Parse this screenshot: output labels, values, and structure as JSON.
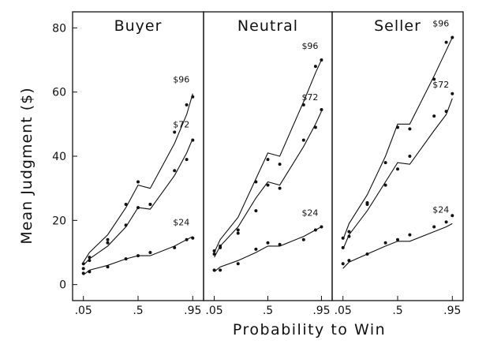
{
  "chart_data": [
    {
      "type": "line",
      "title": "Buyer",
      "xlabel": "Probability to Win",
      "ylabel": "Mean Judgment ($)",
      "xlim": [
        0,
        1
      ],
      "ylim": [
        -5,
        85
      ],
      "x_ticks": [
        ".05",
        ".5",
        ".95"
      ],
      "y_ticks": [
        "0",
        "20",
        "40",
        "60",
        "80"
      ],
      "series": [
        {
          "name": "$96",
          "points": {
            "x": [
              0.05,
              0.1,
              0.25,
              0.4,
              0.5,
              0.6,
              0.8,
              0.9,
              0.95
            ],
            "y": [
              6.5,
              8.5,
              14,
              25,
              32,
              25,
              47.5,
              56,
              58.5
            ]
          },
          "fit": {
            "x": [
              0.05,
              0.1,
              0.25,
              0.4,
              0.5,
              0.6,
              0.8,
              0.9,
              0.95
            ],
            "y": [
              7,
              10,
              15.5,
              24,
              31,
              30,
              44,
              53,
              59.5
            ]
          }
        },
        {
          "name": "$72",
          "points": {
            "x": [
              0.05,
              0.1,
              0.25,
              0.4,
              0.5,
              0.6,
              0.8,
              0.9,
              0.95
            ],
            "y": [
              5,
              7.5,
              13,
              18.5,
              24,
              25,
              35.5,
              39,
              45
            ]
          },
          "fit": {
            "x": [
              0.05,
              0.1,
              0.25,
              0.4,
              0.5,
              0.6,
              0.8,
              0.9,
              0.95
            ],
            "y": [
              6,
              8,
              12,
              18,
              24,
              23.5,
              34,
              41,
              45.5
            ]
          }
        },
        {
          "name": "$24",
          "points": {
            "x": [
              0.05,
              0.1,
              0.25,
              0.4,
              0.5,
              0.6,
              0.8,
              0.9,
              0.95
            ],
            "y": [
              3.5,
              4,
              5.5,
              8,
              9,
              10,
              11.5,
              14,
              14.5
            ]
          },
          "fit": {
            "x": [
              0.05,
              0.1,
              0.25,
              0.4,
              0.5,
              0.6,
              0.8,
              0.9,
              0.95
            ],
            "y": [
              3,
              4.5,
              6,
              8,
              9,
              9,
              12,
              14,
              15
            ]
          }
        }
      ]
    },
    {
      "type": "line",
      "title": "Neutral",
      "xlim": [
        0,
        1
      ],
      "ylim": [
        -5,
        85
      ],
      "x_ticks": [
        ".05",
        ".5",
        ".95"
      ],
      "series": [
        {
          "name": "$96",
          "points": {
            "x": [
              0.05,
              0.1,
              0.25,
              0.4,
              0.5,
              0.6,
              0.8,
              0.9,
              0.95
            ],
            "y": [
              10.5,
              12,
              17,
              32,
              39,
              37.5,
              56,
              68,
              70
            ]
          },
          "fit": {
            "x": [
              0.05,
              0.1,
              0.25,
              0.4,
              0.5,
              0.6,
              0.8,
              0.9,
              0.95
            ],
            "y": [
              10,
              14,
              21,
              33,
              41,
              40,
              57,
              66,
              70
            ]
          }
        },
        {
          "name": "$72",
          "points": {
            "x": [
              0.05,
              0.1,
              0.25,
              0.4,
              0.5,
              0.6,
              0.8,
              0.9,
              0.95
            ],
            "y": [
              9.5,
              11.5,
              16,
              23,
              31,
              30,
              45,
              49,
              54.5
            ]
          },
          "fit": {
            "x": [
              0.05,
              0.1,
              0.25,
              0.4,
              0.5,
              0.6,
              0.8,
              0.9,
              0.95
            ],
            "y": [
              8.5,
              12,
              18,
              27,
              32,
              31,
              43,
              50,
              54
            ]
          }
        },
        {
          "name": "$24",
          "points": {
            "x": [
              0.05,
              0.1,
              0.25,
              0.4,
              0.5,
              0.6,
              0.8,
              0.9,
              0.95
            ],
            "y": [
              4.5,
              4.5,
              6.5,
              11,
              13,
              12.5,
              14,
              17,
              18
            ]
          },
          "fit": {
            "x": [
              0.05,
              0.1,
              0.25,
              0.4,
              0.5,
              0.6,
              0.8,
              0.9,
              0.95
            ],
            "y": [
              4,
              5.5,
              7.5,
              10,
              12,
              12,
              15,
              17,
              18
            ]
          }
        }
      ]
    },
    {
      "type": "line",
      "title": "Seller",
      "xlim": [
        0,
        1
      ],
      "ylim": [
        -5,
        85
      ],
      "x_ticks": [
        ".05",
        ".5",
        ".95"
      ],
      "series": [
        {
          "name": "$96",
          "points": {
            "x": [
              0.05,
              0.1,
              0.25,
              0.4,
              0.5,
              0.6,
              0.8,
              0.9,
              0.95
            ],
            "y": [
              14.5,
              16.5,
              25.5,
              38,
              49,
              48.5,
              64,
              75.5,
              77
            ]
          },
          "fit": {
            "x": [
              0.05,
              0.1,
              0.25,
              0.4,
              0.5,
              0.6,
              0.8,
              0.9,
              0.95
            ],
            "y": [
              14,
              19,
              28,
              40,
              50,
              50,
              65,
              73,
              77
            ]
          }
        },
        {
          "name": "$72",
          "points": {
            "x": [
              0.05,
              0.1,
              0.25,
              0.4,
              0.5,
              0.6,
              0.8,
              0.9,
              0.95
            ],
            "y": [
              11.5,
              15,
              25,
              31,
              36,
              40,
              52.5,
              54,
              59.5
            ]
          },
          "fit": {
            "x": [
              0.05,
              0.1,
              0.25,
              0.4,
              0.5,
              0.6,
              0.8,
              0.9,
              0.95
            ],
            "y": [
              11,
              15.5,
              23,
              32,
              38,
              37.5,
              48,
              53,
              58
            ]
          }
        },
        {
          "name": "$24",
          "points": {
            "x": [
              0.05,
              0.1,
              0.25,
              0.4,
              0.5,
              0.6,
              0.8,
              0.9,
              0.95
            ],
            "y": [
              6.5,
              7.5,
              9.5,
              13,
              14,
              15.5,
              18,
              19.5,
              21.5
            ]
          },
          "fit": {
            "x": [
              0.05,
              0.1,
              0.25,
              0.4,
              0.5,
              0.6,
              0.8,
              0.9,
              0.95
            ],
            "y": [
              5,
              7,
              9.5,
              12,
              13.5,
              13.5,
              16.5,
              18,
              19
            ]
          }
        }
      ]
    }
  ]
}
